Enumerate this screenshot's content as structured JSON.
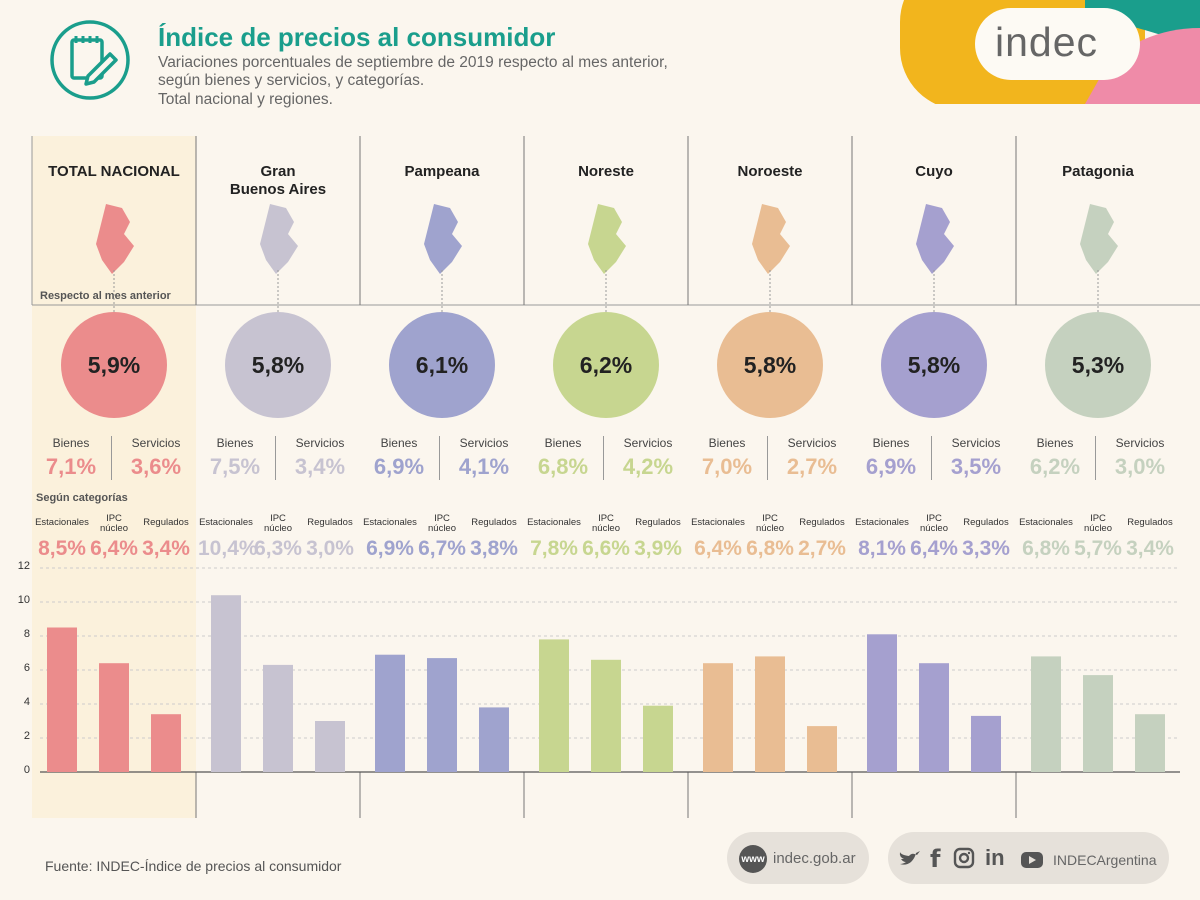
{
  "header": {
    "title": "Índice de precios al consumidor",
    "subtitle_lines": [
      "Variaciones porcentuales de septiembre de 2019 respecto al mes anterior,",
      "según bienes y servicios, y categorías.",
      "Total nacional y regiones."
    ],
    "logo": "indec"
  },
  "labels": {
    "respecto": "Respecto al mes anterior",
    "segun": "Según categorías",
    "bienes": "Bienes",
    "servicios": "Servicios",
    "estacionales": "Estacionales",
    "ipc": "IPC",
    "nucleo": "núcleo",
    "regulados": "Regulados"
  },
  "footer": {
    "source": "Fuente: INDEC-Índice de precios al consumidor",
    "www_badge": "www",
    "website": "indec.gob.ar",
    "social_handle": "INDECArgentina",
    "social_icons": [
      "twitter-icon",
      "facebook-icon",
      "instagram-icon",
      "linkedin-icon",
      "youtube-icon"
    ]
  },
  "colors": {
    "teal": "#1a9e8c",
    "regions": [
      "#eb8c8c",
      "#c7c3d1",
      "#9fa3ce",
      "#c7d690",
      "#e9bd93",
      "#a5a0cf",
      "#c5d1bf"
    ]
  },
  "chart_data": {
    "type": "bar",
    "ylim": [
      0,
      12
    ],
    "yticks": [
      0,
      2,
      4,
      6,
      8,
      10,
      12
    ],
    "categories": [
      "Estacionales",
      "IPC núcleo",
      "Regulados"
    ],
    "regions": [
      {
        "name": "TOTAL NACIONAL",
        "name_lines": [
          "TOTAL NACIONAL"
        ],
        "total": "5,9%",
        "bienes": "7,1%",
        "servicios": "3,6%",
        "values": [
          8.5,
          6.4,
          3.4
        ],
        "value_labels": [
          "8,5%",
          "6,4%",
          "3,4%"
        ]
      },
      {
        "name": "Gran Buenos Aires",
        "name_lines": [
          "Gran",
          "Buenos Aires"
        ],
        "total": "5,8%",
        "bienes": "7,5%",
        "servicios": "3,4%",
        "values": [
          10.4,
          6.3,
          3.0
        ],
        "value_labels": [
          "10,4%",
          "6,3%",
          "3,0%"
        ]
      },
      {
        "name": "Pampeana",
        "name_lines": [
          "Pampeana"
        ],
        "total": "6,1%",
        "bienes": "6,9%",
        "servicios": "4,1%",
        "values": [
          6.9,
          6.7,
          3.8
        ],
        "value_labels": [
          "6,9%",
          "6,7%",
          "3,8%"
        ]
      },
      {
        "name": "Noreste",
        "name_lines": [
          "Noreste"
        ],
        "total": "6,2%",
        "bienes": "6,8%",
        "servicios": "4,2%",
        "values": [
          7.8,
          6.6,
          3.9
        ],
        "value_labels": [
          "7,8%",
          "6,6%",
          "3,9%"
        ]
      },
      {
        "name": "Noroeste",
        "name_lines": [
          "Noroeste"
        ],
        "total": "5,8%",
        "bienes": "7,0%",
        "servicios": "2,7%",
        "values": [
          6.4,
          6.8,
          2.7
        ],
        "value_labels": [
          "6,4%",
          "6,8%",
          "2,7%"
        ]
      },
      {
        "name": "Cuyo",
        "name_lines": [
          "Cuyo"
        ],
        "total": "5,8%",
        "bienes": "6,9%",
        "servicios": "3,5%",
        "values": [
          8.1,
          6.4,
          3.3
        ],
        "value_labels": [
          "8,1%",
          "6,4%",
          "3,3%"
        ]
      },
      {
        "name": "Patagonia",
        "name_lines": [
          "Patagonia"
        ],
        "total": "5,3%",
        "bienes": "6,2%",
        "servicios": "3,0%",
        "values": [
          6.8,
          5.7,
          3.4
        ],
        "value_labels": [
          "6,8%",
          "5,7%",
          "3,4%"
        ]
      }
    ]
  }
}
